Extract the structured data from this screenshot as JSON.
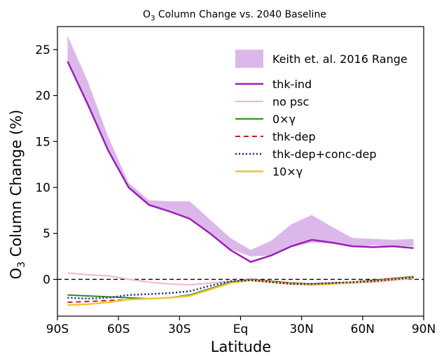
{
  "chart_data": {
    "type": "line",
    "title_prefix": "O",
    "title_sub": "3",
    "title_suffix": " Column Change vs. 2040 Baseline",
    "xlabel": "Latitude",
    "ylabel_prefix": "O",
    "ylabel_sub": "3",
    "ylabel_suffix": " Column Change (%)",
    "xlim": [
      -90,
      90
    ],
    "ylim": [
      -4,
      27.5
    ],
    "x_ticks": [
      {
        "value": -90,
        "label": "90S"
      },
      {
        "value": -60,
        "label": "60S"
      },
      {
        "value": -30,
        "label": "30S"
      },
      {
        "value": 0,
        "label": "Eq"
      },
      {
        "value": 30,
        "label": "30N"
      },
      {
        "value": 60,
        "label": "60N"
      },
      {
        "value": 90,
        "label": "90N"
      }
    ],
    "y_ticks": [
      0,
      5,
      10,
      15,
      20,
      25
    ],
    "reference_line": {
      "y": 0,
      "style": "dashed",
      "color": "#000000"
    },
    "legend_position": "top-right",
    "band": {
      "name": "Keith et. al. 2016 Range",
      "color": "#dcb8ea",
      "x": [
        -85,
        -75,
        -65,
        -55,
        -45,
        -35,
        -25,
        -15,
        -5,
        5,
        15,
        25,
        35,
        45,
        55,
        65,
        75,
        85
      ],
      "upper": [
        26.5,
        21.5,
        15.5,
        10.5,
        8.6,
        8.5,
        8.5,
        6.5,
        4.5,
        3.2,
        4.2,
        6.0,
        7.0,
        5.7,
        4.5,
        4.4,
        4.3,
        4.4
      ],
      "lower": [
        23.8,
        19.0,
        14.0,
        10.0,
        8.1,
        7.5,
        6.7,
        5.0,
        3.3,
        2.5,
        2.6,
        3.5,
        4.0,
        3.9,
        3.5,
        3.7,
        3.6,
        3.6
      ]
    },
    "series": [
      {
        "name": "thk-ind",
        "color": "#9b1fb8",
        "dash": "solid",
        "width": 2.5,
        "x": [
          -85,
          -75,
          -65,
          -55,
          -45,
          -35,
          -25,
          -15,
          -5,
          5,
          15,
          25,
          35,
          45,
          55,
          65,
          75,
          85
        ],
        "y": [
          23.7,
          19.0,
          14.0,
          10.0,
          8.1,
          7.4,
          6.6,
          5.0,
          3.2,
          1.9,
          2.6,
          3.6,
          4.3,
          4.0,
          3.6,
          3.5,
          3.6,
          3.4
        ]
      },
      {
        "name": "no psc",
        "color": "#f0b6cc",
        "dash": "solid",
        "width": 2,
        "x": [
          -85,
          -75,
          -65,
          -55,
          -45,
          -35,
          -25,
          -15,
          -5,
          5,
          15,
          25,
          35,
          45,
          55,
          65,
          75,
          85
        ],
        "y": [
          0.7,
          0.5,
          0.4,
          0.0,
          -0.3,
          -0.5,
          -0.6,
          -0.4,
          -0.2,
          -0.1,
          -0.3,
          -0.5,
          -0.6,
          -0.5,
          -0.4,
          -0.3,
          -0.1,
          0.1
        ]
      },
      {
        "name": "0×γ",
        "color": "#2e8a1f",
        "dash": "solid",
        "width": 2,
        "x": [
          -85,
          -75,
          -65,
          -55,
          -45,
          -35,
          -25,
          -15,
          -5,
          5,
          15,
          25,
          35,
          45,
          55,
          65,
          75,
          85
        ],
        "y": [
          -1.7,
          -1.8,
          -1.9,
          -2.0,
          -2.1,
          -2.0,
          -1.7,
          -1.0,
          -0.3,
          0.0,
          -0.2,
          -0.4,
          -0.5,
          -0.4,
          -0.3,
          -0.1,
          0.1,
          0.3
        ]
      },
      {
        "name": "thk-dep",
        "color": "#c41f1f",
        "dash": "7,5",
        "width": 2,
        "x": [
          -85,
          -75,
          -65,
          -55,
          -45,
          -35,
          -25,
          -15,
          -5,
          5,
          15,
          25,
          35,
          45,
          55,
          65,
          75,
          85
        ],
        "y": [
          -2.5,
          -2.4,
          -2.3,
          -2.2,
          -2.1,
          -2.0,
          -1.8,
          -1.1,
          -0.4,
          0.0,
          -0.2,
          -0.4,
          -0.5,
          -0.4,
          -0.3,
          -0.1,
          0.1,
          0.2
        ]
      },
      {
        "name": "thk-dep+conc-dep",
        "color": "#1a2699",
        "dash": "2,3",
        "width": 2.5,
        "x": [
          -85,
          -75,
          -65,
          -55,
          -45,
          -35,
          -25,
          -15,
          -5,
          5,
          15,
          25,
          35,
          45,
          55,
          65,
          75,
          85
        ],
        "y": [
          -2.0,
          -2.1,
          -2.0,
          -1.7,
          -1.6,
          -1.5,
          -1.3,
          -0.7,
          -0.2,
          -0.1,
          -0.3,
          -0.5,
          -0.5,
          -0.4,
          -0.3,
          -0.2,
          0.0,
          0.2
        ]
      },
      {
        "name": "10×γ",
        "color": "#f2c433",
        "dash": "solid",
        "width": 2.5,
        "x": [
          -85,
          -75,
          -65,
          -55,
          -45,
          -35,
          -25,
          -15,
          -5,
          5,
          15,
          25,
          35,
          45,
          55,
          65,
          75,
          85
        ],
        "y": [
          -2.8,
          -2.7,
          -2.5,
          -2.2,
          -2.1,
          -2.0,
          -1.8,
          -1.1,
          -0.4,
          -0.1,
          -0.3,
          -0.5,
          -0.6,
          -0.5,
          -0.3,
          -0.2,
          0.0,
          0.2
        ]
      }
    ]
  }
}
